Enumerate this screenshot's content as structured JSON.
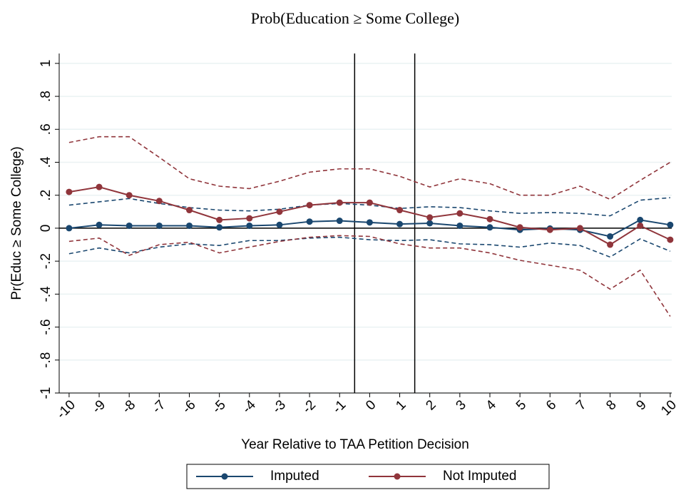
{
  "chart_data": {
    "type": "line",
    "title": "Prob(Education ≥ Some College)",
    "x_label": "Year Relative to TAA Petition Decision",
    "y_label": "Pr(Educ ≥ Some College)",
    "x": [
      -10,
      -9,
      -8,
      -7,
      -6,
      -5,
      -4,
      -3,
      -2,
      -1,
      0,
      1,
      2,
      3,
      4,
      5,
      6,
      7,
      8,
      9,
      10
    ],
    "xlim": [
      -10.33,
      10.05
    ],
    "xticks": [
      -10,
      -9,
      -8,
      -7,
      -6,
      -5,
      -4,
      -3,
      -2,
      -1,
      0,
      1,
      2,
      3,
      4,
      5,
      6,
      7,
      8,
      9,
      10
    ],
    "ylim": [
      -1,
      1.06
    ],
    "yticks": [
      -1,
      {
        "value": -0.8,
        "label": "-.8"
      },
      {
        "value": -0.6,
        "label": "-.6"
      },
      {
        "value": -0.4,
        "label": "-.4"
      },
      {
        "value": -0.2,
        "label": "-.2"
      },
      0,
      {
        "value": 0.2,
        "label": ".2"
      },
      {
        "value": 0.4,
        "label": ".4"
      },
      {
        "value": 0.6,
        "label": ".6"
      },
      {
        "value": 0.8,
        "label": ".8"
      },
      1
    ],
    "grid": true,
    "vlines": [
      -0.5,
      1.5
    ],
    "hline": 0,
    "legend": "bottom",
    "series": [
      {
        "name": "Imputed",
        "color": "#1a476f",
        "values": [
          0,
          0.02,
          0.015,
          0.015,
          0.015,
          0.005,
          0.015,
          0.02,
          0.04,
          0.045,
          0.035,
          0.025,
          0.03,
          0.015,
          0.005,
          -0.01,
          -0.002,
          -0.01,
          -0.05,
          0.05,
          0.02
        ],
        "ci_upper": [
          0.14,
          0.16,
          0.18,
          0.15,
          0.125,
          0.11,
          0.105,
          0.115,
          0.14,
          0.15,
          0.14,
          0.12,
          0.13,
          0.125,
          0.105,
          0.09,
          0.095,
          0.09,
          0.075,
          0.17,
          0.185
        ],
        "ci_lower": [
          -0.155,
          -0.12,
          -0.15,
          -0.115,
          -0.095,
          -0.105,
          -0.075,
          -0.075,
          -0.06,
          -0.055,
          -0.07,
          -0.075,
          -0.07,
          -0.095,
          -0.1,
          -0.115,
          -0.09,
          -0.105,
          -0.175,
          -0.065,
          -0.14
        ]
      },
      {
        "name": "Not Imputed",
        "color": "#90353b",
        "values": [
          0.22,
          0.25,
          0.2,
          0.165,
          0.11,
          0.05,
          0.06,
          0.1,
          0.14,
          0.155,
          0.155,
          0.11,
          0.065,
          0.09,
          0.055,
          0.005,
          -0.01,
          0,
          -0.1,
          0.015,
          -0.07
        ],
        "ci_upper": [
          0.52,
          0.555,
          0.555,
          0.43,
          0.3,
          0.255,
          0.24,
          0.285,
          0.34,
          0.36,
          0.36,
          0.315,
          0.25,
          0.3,
          0.27,
          0.2,
          0.2,
          0.255,
          0.175,
          0.29,
          0.4
        ],
        "ci_lower": [
          -0.08,
          -0.06,
          -0.165,
          -0.1,
          -0.085,
          -0.15,
          -0.115,
          -0.08,
          -0.055,
          -0.045,
          -0.05,
          -0.095,
          -0.12,
          -0.12,
          -0.15,
          -0.195,
          -0.225,
          -0.255,
          -0.37,
          -0.255,
          -0.535
        ]
      }
    ]
  }
}
